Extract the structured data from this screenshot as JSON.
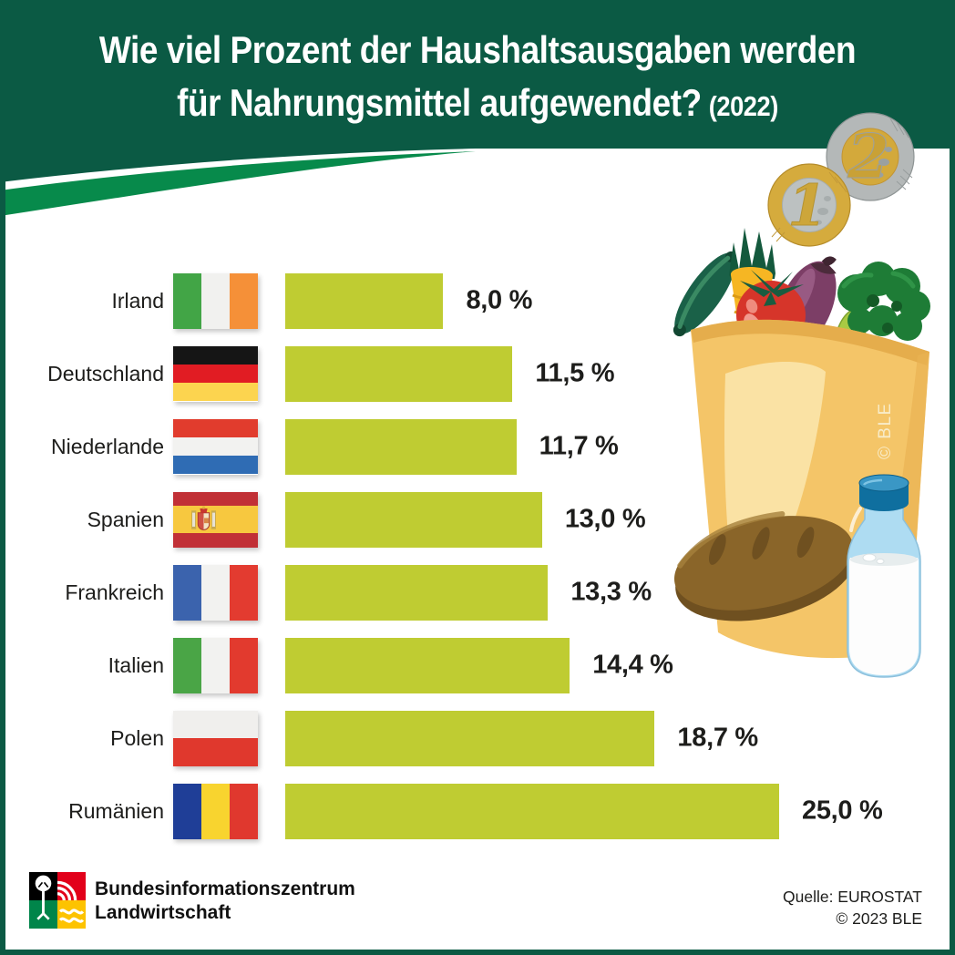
{
  "theme": {
    "dark_green": "#0b5a44",
    "swoosh_green": "#078a4b",
    "bar_green": "#bfcc32",
    "ink": "#1d1d1b"
  },
  "header": {
    "title_line1": "Wie viel Prozent der Haushaltsausgaben werden",
    "title_line2": "für Nahrungsmittel aufgewendet?",
    "title_year": "(2022)"
  },
  "coins": {
    "coin_one_label": "1",
    "coin_two_label": "2"
  },
  "chart_data": {
    "type": "bar",
    "orientation": "horizontal",
    "title": "Wie viel Prozent der Haushaltsausgaben werden für Nahrungsmittel aufgewendet? (2022)",
    "xlabel": "",
    "ylabel": "",
    "unit": "%",
    "xlim": [
      0,
      25
    ],
    "grid": false,
    "bar_color": "#bfcc32",
    "categories": [
      "Irland",
      "Deutschland",
      "Niederlande",
      "Spanien",
      "Frankreich",
      "Italien",
      "Polen",
      "Rumänien"
    ],
    "values": [
      8.0,
      11.5,
      11.7,
      13.0,
      13.3,
      14.4,
      18.7,
      25.0
    ],
    "value_labels": [
      "8,0 %",
      "11,5 %",
      "11,7 %",
      "13,0 %",
      "13,3 %",
      "14,4 %",
      "18,7 %",
      "25,0 %"
    ],
    "flags": [
      {
        "country": "Irland",
        "dir": "v",
        "stripes": [
          {
            "c": "#42a546",
            "w": 1
          },
          {
            "c": "#f1f1ef",
            "w": 1
          },
          {
            "c": "#f59038",
            "w": 1
          }
        ]
      },
      {
        "country": "Deutschland",
        "dir": "h",
        "stripes": [
          {
            "c": "#151515",
            "w": 1
          },
          {
            "c": "#e11c23",
            "w": 1
          },
          {
            "c": "#fcd44f",
            "w": 1
          }
        ]
      },
      {
        "country": "Niederlande",
        "dir": "h",
        "stripes": [
          {
            "c": "#e13c2d",
            "w": 1
          },
          {
            "c": "#f2f2f0",
            "w": 1
          },
          {
            "c": "#2f6cb4",
            "w": 1
          }
        ]
      },
      {
        "country": "Spanien",
        "dir": "h",
        "emblem": true,
        "stripes": [
          {
            "c": "#c13036",
            "w": 1
          },
          {
            "c": "#f7c83f",
            "w": 2
          },
          {
            "c": "#c13036",
            "w": 1
          }
        ]
      },
      {
        "country": "Frankreich",
        "dir": "v",
        "stripes": [
          {
            "c": "#3b63ad",
            "w": 1
          },
          {
            "c": "#f2f2f0",
            "w": 1
          },
          {
            "c": "#e33b30",
            "w": 1
          }
        ]
      },
      {
        "country": "Italien",
        "dir": "v",
        "stripes": [
          {
            "c": "#4aa546",
            "w": 1
          },
          {
            "c": "#f2f2f0",
            "w": 1
          },
          {
            "c": "#e23a2e",
            "w": 1
          }
        ]
      },
      {
        "country": "Polen",
        "dir": "h",
        "stripes": [
          {
            "c": "#f0efed",
            "w": 1
          },
          {
            "c": "#e0382d",
            "w": 1
          }
        ]
      },
      {
        "country": "Rumänien",
        "dir": "v",
        "stripes": [
          {
            "c": "#1f3e97",
            "w": 1
          },
          {
            "c": "#f8d42f",
            "w": 1
          },
          {
            "c": "#e0382e",
            "w": 1
          }
        ]
      }
    ]
  },
  "illustration": {
    "copyright_vertical": "© BLE"
  },
  "footer": {
    "org_line1": "Bundesinformationszentrum",
    "org_line2": "Landwirtschaft",
    "source_line1": "Quelle: EUROSTAT",
    "source_line2": "© 2023 BLE"
  }
}
